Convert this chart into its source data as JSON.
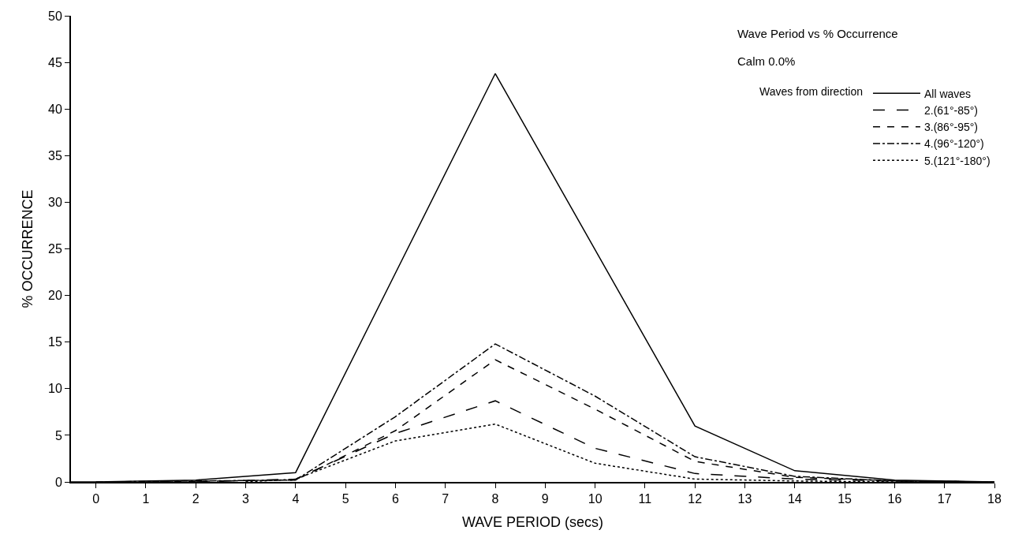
{
  "chart_data": {
    "type": "line",
    "title": "Wave Period vs % Occurrence",
    "subtitle": "Calm 0.0%",
    "xlabel": "WAVE PERIOD (secs)",
    "ylabel": "% OCCURRENCE",
    "legend_title": "Waves from direction",
    "xlim": [
      -0.5,
      18
    ],
    "xticks": [
      0,
      1,
      2,
      3,
      4,
      5,
      6,
      7,
      8,
      9,
      10,
      11,
      12,
      13,
      14,
      15,
      16,
      17,
      18
    ],
    "ylim": [
      0,
      50
    ],
    "yticks": [
      0,
      5,
      10,
      15,
      20,
      25,
      30,
      35,
      40,
      45,
      50
    ],
    "legend": "top right",
    "marker": "none",
    "series": [
      {
        "name": "All waves",
        "color": "#000000",
        "line_style": "solid",
        "x": [
          -0.5,
          0,
          2,
          4,
          8,
          12,
          14,
          16,
          18
        ],
        "values": [
          0,
          0,
          0.2,
          1.0,
          43.8,
          6.0,
          1.2,
          0.2,
          0
        ]
      },
      {
        "name": "2.(61°-85°)",
        "color": "#000000",
        "line_style": "longdash",
        "x": [
          2,
          4,
          6,
          8,
          10,
          12,
          14,
          16,
          18
        ],
        "values": [
          0,
          0.3,
          5.2,
          8.7,
          3.6,
          0.9,
          0.3,
          0.1,
          0
        ]
      },
      {
        "name": "3.(86°-95°)",
        "color": "#000000",
        "line_style": "dashed",
        "x": [
          1,
          4,
          6,
          8,
          10,
          12,
          14,
          16,
          18
        ],
        "values": [
          0,
          0.2,
          5.5,
          13.1,
          7.8,
          2.2,
          0.5,
          0.1,
          0
        ]
      },
      {
        "name": "4.(96°-120°)",
        "color": "#000000",
        "line_style": "dashdot",
        "x": [
          0,
          4,
          6,
          8,
          10,
          12,
          14,
          16,
          18
        ],
        "values": [
          0,
          0.2,
          7.0,
          14.8,
          9.2,
          2.7,
          0.6,
          0.1,
          0
        ]
      },
      {
        "name": "5.(121°-180°)",
        "color": "#000000",
        "line_style": "dotted",
        "x": [
          3,
          4,
          6,
          8,
          10,
          12,
          14,
          16,
          18
        ],
        "values": [
          0,
          0.3,
          4.4,
          6.2,
          2.0,
          0.3,
          0.1,
          0,
          0
        ]
      }
    ]
  }
}
